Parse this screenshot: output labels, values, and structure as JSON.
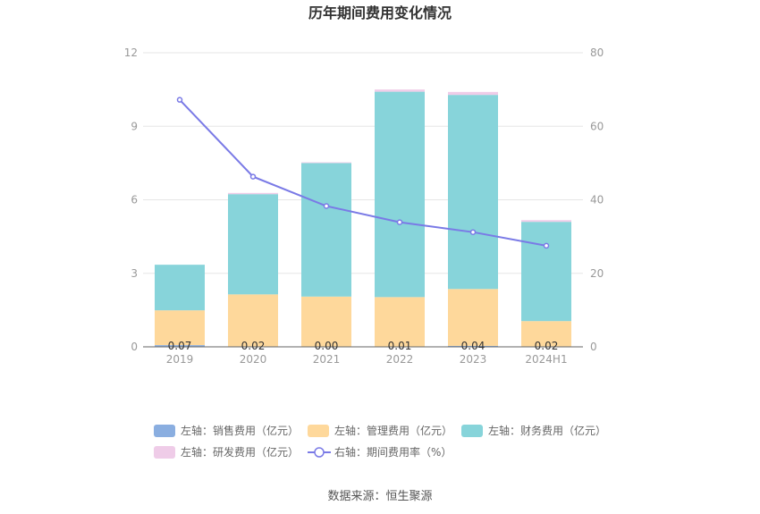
{
  "chart_data": {
    "type": "bar",
    "title": "历年期间费用变化情况",
    "categories": [
      "2019",
      "2020",
      "2021",
      "2022",
      "2023",
      "2024H1"
    ],
    "left_axis": {
      "ylim": [
        0,
        12
      ],
      "ticks": [
        "0",
        "3",
        "6",
        "9",
        "12"
      ]
    },
    "right_axis": {
      "ylim": [
        0,
        80
      ],
      "ticks": [
        "0",
        "20",
        "40",
        "60",
        "80"
      ]
    },
    "series": [
      {
        "name": "左轴：销售费用（亿元）",
        "axis": "left",
        "kind": "bar",
        "color": "#8aaee0",
        "values": [
          0.07,
          0.02,
          0.0,
          0.01,
          0.04,
          0.02
        ],
        "labels": [
          "0.07",
          "0.02",
          "0.00",
          "0.01",
          "0.04",
          "0.02"
        ]
      },
      {
        "name": "左轴：管理费用（亿元）",
        "axis": "left",
        "kind": "bar",
        "color": "#fed89b",
        "values": [
          1.42,
          2.12,
          2.05,
          2.02,
          2.32,
          1.03
        ]
      },
      {
        "name": "左轴：财务费用（亿元）",
        "axis": "left",
        "kind": "bar",
        "color": "#87d4da",
        "values": [
          1.86,
          4.09,
          5.45,
          8.38,
          7.92,
          4.05
        ]
      },
      {
        "name": "左轴：研发费用（亿元）",
        "axis": "left",
        "kind": "bar",
        "color": "#efcce8",
        "values": [
          0.0,
          0.05,
          0.02,
          0.09,
          0.12,
          0.07
        ]
      },
      {
        "name": "右轴：期间费用率（%）",
        "axis": "right",
        "kind": "line",
        "color": "#7a7ae6",
        "values": [
          67.2,
          46.3,
          38.3,
          33.9,
          31.2,
          27.5
        ]
      }
    ],
    "legend_position": "bottom",
    "grid": true
  },
  "source": "数据来源：恒生聚源"
}
